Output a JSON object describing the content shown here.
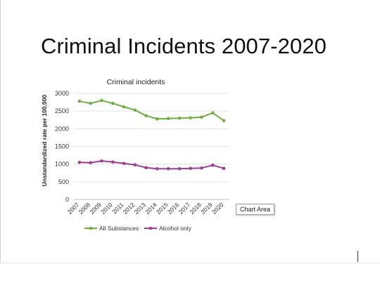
{
  "slide": {
    "title": "Criminal Incidents 2007-2020"
  },
  "tooltip": {
    "label": "Chart Area"
  },
  "chart_data": {
    "type": "line",
    "title": "Criminal incidents",
    "xlabel": "",
    "ylabel": "Unstandardized rate per 100,000",
    "ylim": [
      0,
      3000
    ],
    "yticks": [
      0,
      500,
      1000,
      1500,
      2000,
      2500,
      3000
    ],
    "x": [
      "2007",
      "2008",
      "2009",
      "2010",
      "2011",
      "2012",
      "2013",
      "2014",
      "2015",
      "2016",
      "2017",
      "2018",
      "2019",
      "2020"
    ],
    "grid": true,
    "legend": "bottom",
    "series": [
      {
        "name": "All Substances",
        "color": "#70ad47",
        "values": [
          2780,
          2720,
          2800,
          2720,
          2620,
          2530,
          2370,
          2280,
          2290,
          2300,
          2310,
          2330,
          2450,
          2230
        ]
      },
      {
        "name": "Alcohol only",
        "color": "#9e3d96",
        "values": [
          1050,
          1040,
          1090,
          1060,
          1020,
          980,
          900,
          870,
          870,
          870,
          880,
          890,
          970,
          880
        ]
      }
    ]
  }
}
